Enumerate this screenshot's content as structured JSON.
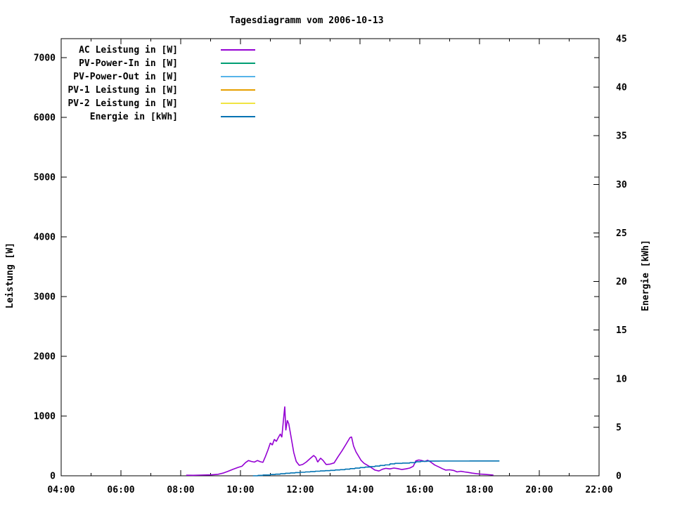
{
  "window": {
    "background": "#ffffff",
    "text_color": "#000000"
  },
  "chart_data": {
    "type": "line",
    "title": "Tagesdiagramm vom 2006-10-13",
    "xlabel": "",
    "ylabel": "Leistung [W]",
    "y2label": "Energie [kWh]",
    "x_range": [
      "04:00",
      "22:00"
    ],
    "x_ticks": [
      "04:00",
      "06:00",
      "08:00",
      "10:00",
      "12:00",
      "14:00",
      "16:00",
      "18:00",
      "20:00",
      "22:00"
    ],
    "x_minor_tick_hours": 1,
    "ylim": [
      0,
      7320
    ],
    "y_ticks": [
      0,
      1000,
      2000,
      3000,
      4000,
      5000,
      6000,
      7000
    ],
    "y2lim": [
      0,
      45
    ],
    "y2_ticks": [
      0,
      5,
      10,
      15,
      20,
      25,
      30,
      35,
      40,
      45
    ],
    "grid": false,
    "legend_position": "top-left-inside",
    "series": [
      {
        "name": "AC Leistung in [W]",
        "color": "#9400d3",
        "axis": "y1",
        "style": "line",
        "points": [
          [
            "08:11",
            10
          ],
          [
            "08:25",
            8
          ],
          [
            "08:40",
            12
          ],
          [
            "09:00",
            15
          ],
          [
            "09:15",
            25
          ],
          [
            "09:25",
            45
          ],
          [
            "09:35",
            75
          ],
          [
            "09:45",
            110
          ],
          [
            "09:55",
            140
          ],
          [
            "10:03",
            160
          ],
          [
            "10:10",
            220
          ],
          [
            "10:16",
            255
          ],
          [
            "10:22",
            240
          ],
          [
            "10:28",
            230
          ],
          [
            "10:34",
            255
          ],
          [
            "10:40",
            235
          ],
          [
            "10:45",
            225
          ],
          [
            "10:50",
            320
          ],
          [
            "10:55",
            430
          ],
          [
            "11:00",
            550
          ],
          [
            "11:04",
            515
          ],
          [
            "11:08",
            610
          ],
          [
            "11:12",
            575
          ],
          [
            "11:16",
            640
          ],
          [
            "11:20",
            700
          ],
          [
            "11:23",
            645
          ],
          [
            "11:26",
            905
          ],
          [
            "11:29",
            1160
          ],
          [
            "11:31",
            760
          ],
          [
            "11:34",
            930
          ],
          [
            "11:37",
            870
          ],
          [
            "11:40",
            730
          ],
          [
            "11:43",
            580
          ],
          [
            "11:47",
            390
          ],
          [
            "11:52",
            240
          ],
          [
            "11:58",
            175
          ],
          [
            "12:05",
            190
          ],
          [
            "12:12",
            230
          ],
          [
            "12:20",
            290
          ],
          [
            "12:27",
            340
          ],
          [
            "12:31",
            310
          ],
          [
            "12:35",
            230
          ],
          [
            "12:41",
            295
          ],
          [
            "12:46",
            255
          ],
          [
            "12:52",
            190
          ],
          [
            "13:00",
            195
          ],
          [
            "13:08",
            215
          ],
          [
            "13:16",
            320
          ],
          [
            "13:24",
            420
          ],
          [
            "13:32",
            530
          ],
          [
            "13:40",
            640
          ],
          [
            "13:43",
            650
          ],
          [
            "13:47",
            500
          ],
          [
            "13:52",
            400
          ],
          [
            "13:57",
            330
          ],
          [
            "14:02",
            260
          ],
          [
            "14:08",
            210
          ],
          [
            "14:15",
            175
          ],
          [
            "14:22",
            140
          ],
          [
            "14:30",
            95
          ],
          [
            "14:38",
            80
          ],
          [
            "14:45",
            110
          ],
          [
            "14:52",
            125
          ],
          [
            "15:00",
            115
          ],
          [
            "15:08",
            130
          ],
          [
            "15:16",
            120
          ],
          [
            "15:24",
            105
          ],
          [
            "15:32",
            115
          ],
          [
            "15:40",
            130
          ],
          [
            "15:47",
            160
          ],
          [
            "15:52",
            250
          ],
          [
            "15:58",
            265
          ],
          [
            "16:04",
            255
          ],
          [
            "16:10",
            240
          ],
          [
            "16:16",
            260
          ],
          [
            "16:22",
            230
          ],
          [
            "16:30",
            180
          ],
          [
            "16:38",
            150
          ],
          [
            "16:45",
            120
          ],
          [
            "16:52",
            95
          ],
          [
            "17:00",
            100
          ],
          [
            "17:08",
            90
          ],
          [
            "17:15",
            65
          ],
          [
            "17:22",
            75
          ],
          [
            "17:30",
            65
          ],
          [
            "17:38",
            55
          ],
          [
            "17:45",
            45
          ],
          [
            "17:52",
            38
          ],
          [
            "18:00",
            30
          ],
          [
            "18:10",
            25
          ],
          [
            "18:20",
            18
          ],
          [
            "18:28",
            12
          ]
        ]
      },
      {
        "name": "PV-Power-In in [W]",
        "color": "#009e73",
        "axis": "y1",
        "style": "line",
        "points": []
      },
      {
        "name": "PV-Power-Out in [W]",
        "color": "#56b4e9",
        "axis": "y1",
        "style": "line",
        "points": []
      },
      {
        "name": "PV-1 Leistung in [W]",
        "color": "#e69f00",
        "axis": "y1",
        "style": "line",
        "points": []
      },
      {
        "name": "PV-2 Leistung in [W]",
        "color": "#f0e442",
        "axis": "y1",
        "style": "line",
        "points": []
      },
      {
        "name": "Energie in [kWh]",
        "color": "#0072b2",
        "axis": "y2",
        "style": "steps",
        "points": [
          [
            "10:25",
            0.0
          ],
          [
            "10:35",
            0.04
          ],
          [
            "10:45",
            0.08
          ],
          [
            "11:00",
            0.13
          ],
          [
            "11:10",
            0.17
          ],
          [
            "11:20",
            0.21
          ],
          [
            "11:30",
            0.26
          ],
          [
            "11:40",
            0.3
          ],
          [
            "11:50",
            0.33
          ],
          [
            "12:00",
            0.36
          ],
          [
            "12:10",
            0.4
          ],
          [
            "12:20",
            0.43
          ],
          [
            "12:30",
            0.47
          ],
          [
            "12:40",
            0.5
          ],
          [
            "12:50",
            0.53
          ],
          [
            "13:00",
            0.56
          ],
          [
            "13:10",
            0.6
          ],
          [
            "13:20",
            0.63
          ],
          [
            "13:30",
            0.68
          ],
          [
            "13:40",
            0.74
          ],
          [
            "13:50",
            0.79
          ],
          [
            "14:00",
            0.85
          ],
          [
            "14:10",
            0.9
          ],
          [
            "14:20",
            0.95
          ],
          [
            "14:30",
            1.0
          ],
          [
            "14:40",
            1.06
          ],
          [
            "14:50",
            1.12
          ],
          [
            "15:00",
            1.22
          ],
          [
            "15:10",
            1.28
          ],
          [
            "15:25",
            1.31
          ],
          [
            "15:40",
            1.35
          ],
          [
            "15:52",
            1.44
          ],
          [
            "16:02",
            1.49
          ],
          [
            "16:15",
            1.51
          ],
          [
            "16:40",
            1.52
          ],
          [
            "17:10",
            1.52
          ],
          [
            "17:40",
            1.53
          ],
          [
            "18:10",
            1.53
          ],
          [
            "18:40",
            1.53
          ]
        ]
      }
    ]
  }
}
